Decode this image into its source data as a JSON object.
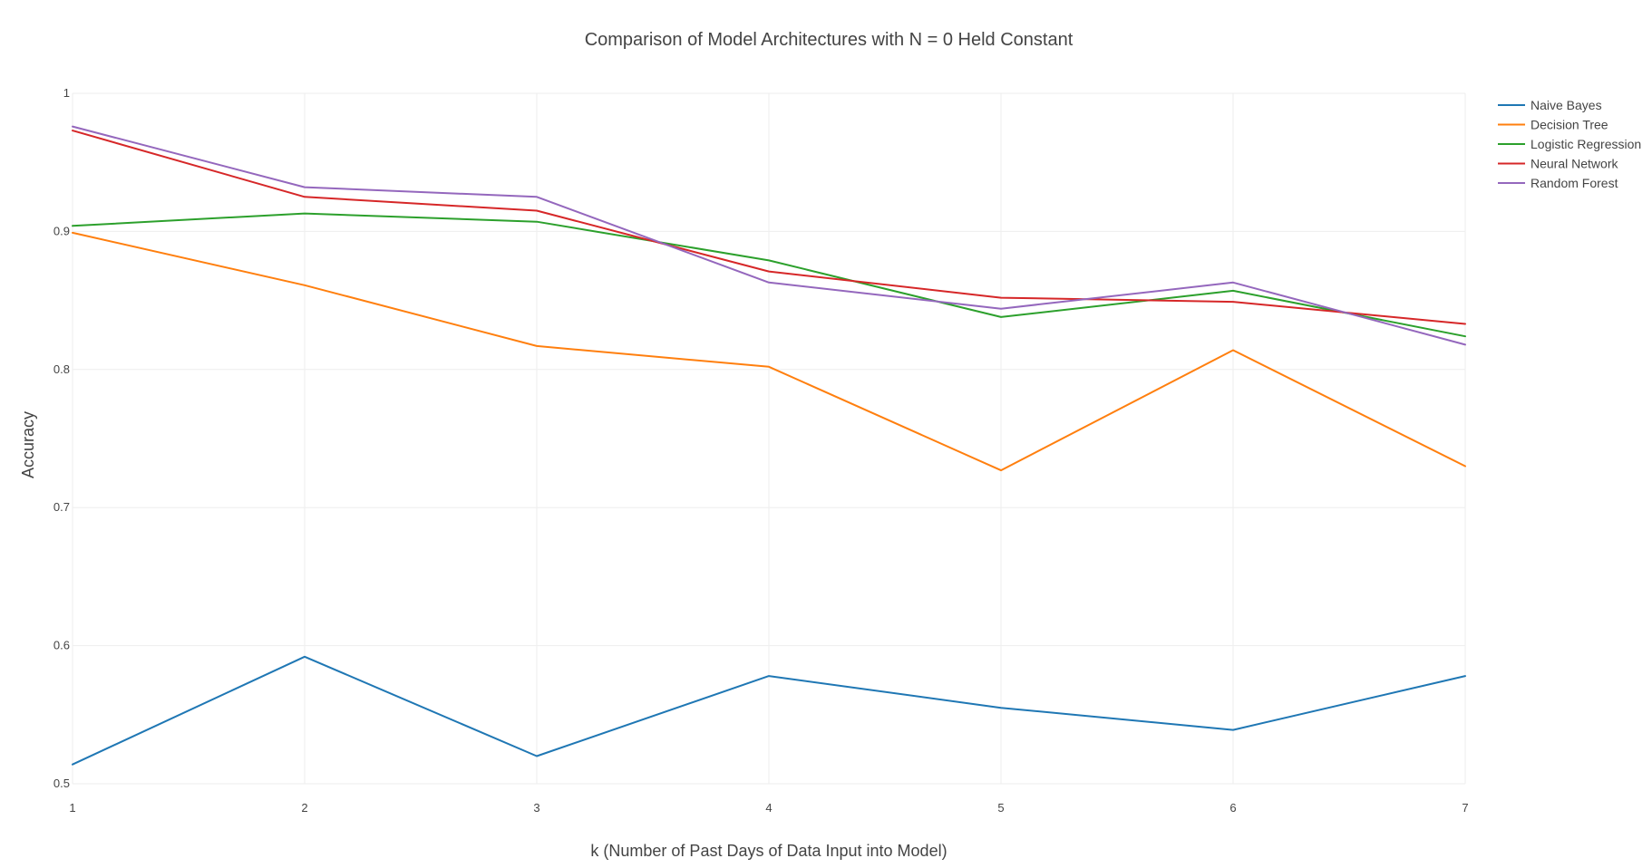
{
  "chart_data": {
    "type": "line",
    "title": "Comparison of Model Architectures with N = 0 Held Constant",
    "xlabel": "k (Number of Past Days of Data Input into Model)",
    "ylabel": "Accuracy",
    "x": [
      1,
      2,
      3,
      4,
      5,
      6,
      7
    ],
    "xlim": [
      1,
      7
    ],
    "ylim": [
      0.5,
      1.0
    ],
    "xticks": [
      "1",
      "2",
      "3",
      "4",
      "5",
      "6",
      "7"
    ],
    "yticks": [
      "0.5",
      "0.6",
      "0.7",
      "0.8",
      "0.9",
      "1"
    ],
    "grid": true,
    "legend_position": "top-right",
    "series": [
      {
        "name": "Naive Bayes",
        "color": "#1f77b4",
        "values": [
          0.514,
          0.592,
          0.52,
          0.578,
          0.555,
          0.539,
          0.578
        ]
      },
      {
        "name": "Decision Tree",
        "color": "#ff7f0e",
        "values": [
          0.899,
          0.861,
          0.817,
          0.802,
          0.727,
          0.814,
          0.73
        ]
      },
      {
        "name": "Logistic Regression",
        "color": "#2ca02c",
        "values": [
          0.904,
          0.913,
          0.907,
          0.879,
          0.838,
          0.857,
          0.824
        ]
      },
      {
        "name": "Neural Network",
        "color": "#d62728",
        "values": [
          0.973,
          0.925,
          0.915,
          0.871,
          0.852,
          0.849,
          0.833
        ]
      },
      {
        "name": "Random Forest",
        "color": "#9467bd",
        "values": [
          0.976,
          0.932,
          0.925,
          0.863,
          0.844,
          0.863,
          0.818
        ]
      }
    ]
  }
}
